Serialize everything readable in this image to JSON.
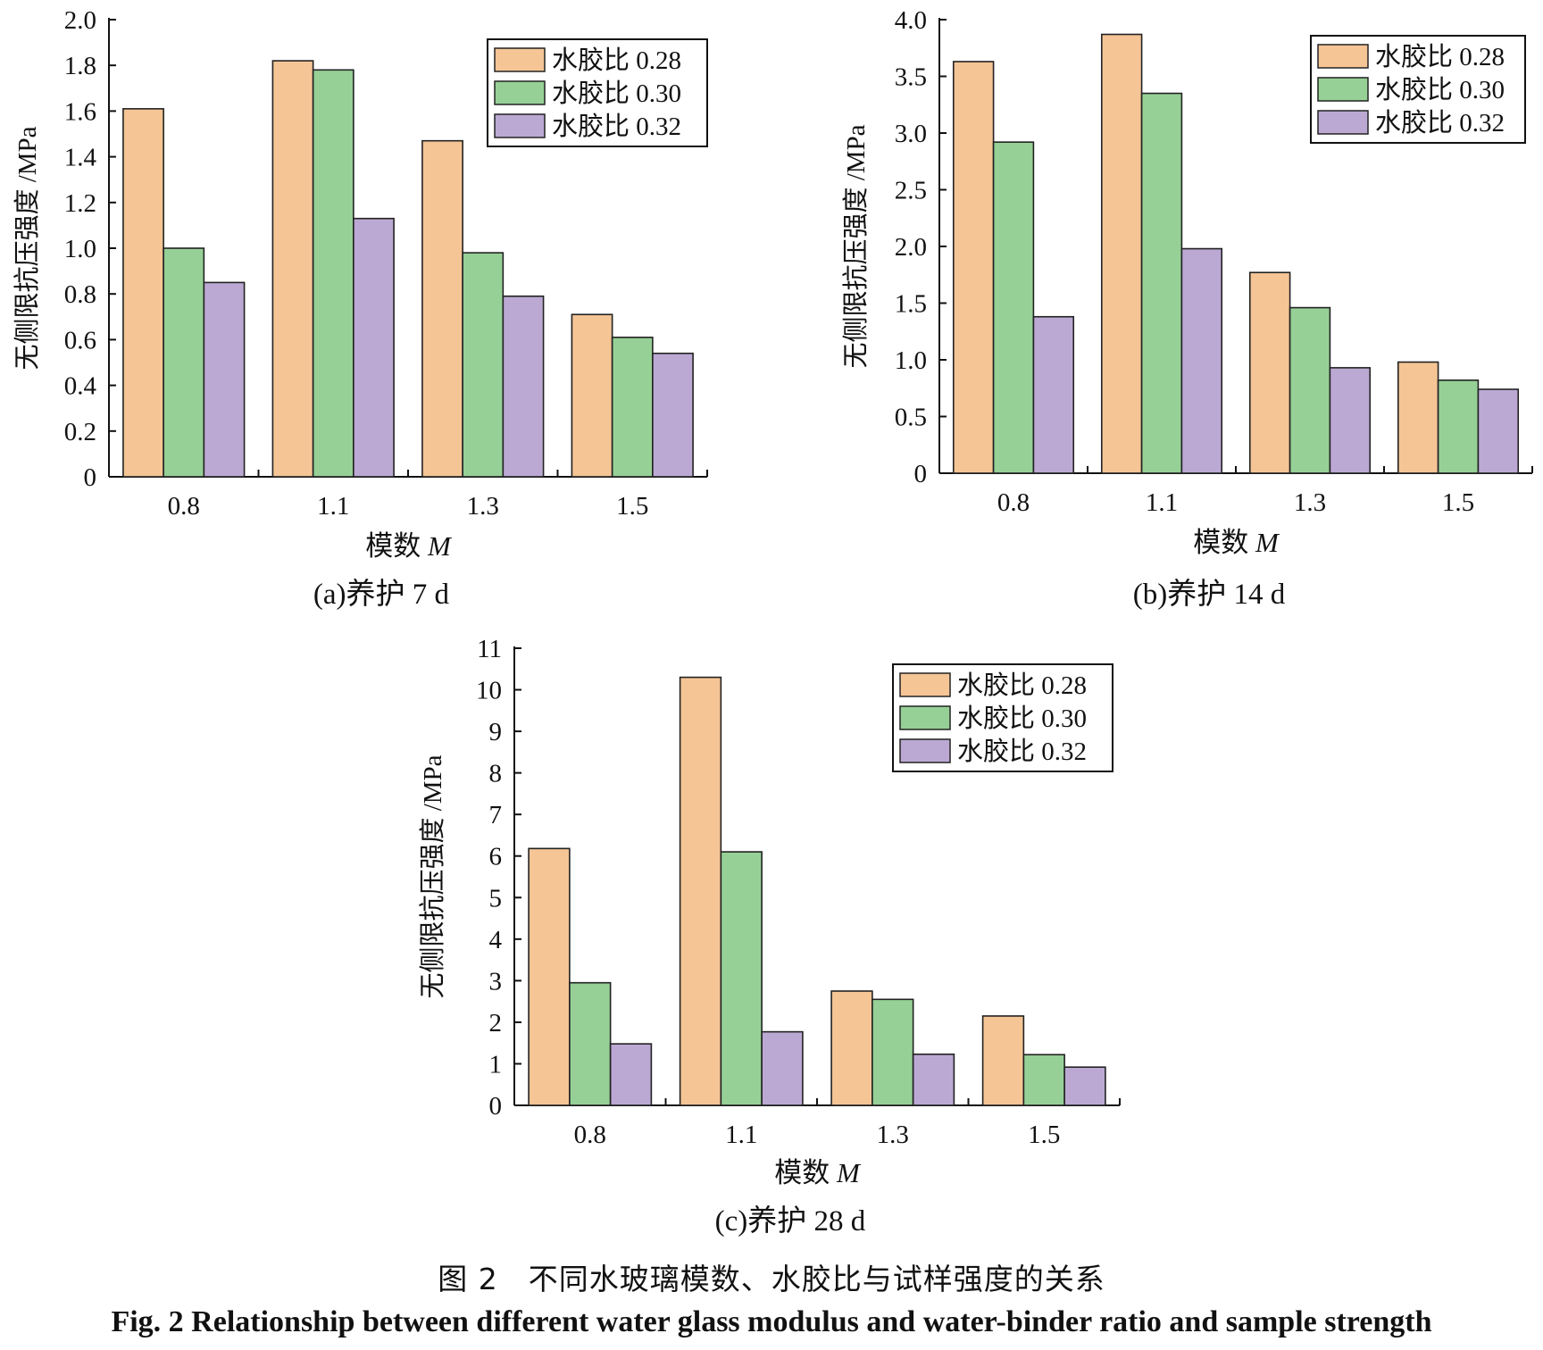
{
  "caption": {
    "cn": "图 2　不同水玻璃模数、水胶比与试样强度的关系",
    "en": "Fig. 2    Relationship between different water glass modulus and water-binder ratio and sample strength"
  },
  "colors": {
    "s028": "#F5C596",
    "s030": "#96D096",
    "s032": "#BBA9D3"
  },
  "chart_data": [
    {
      "type": "bar",
      "subtitle": "(a)养护 7 d",
      "xlabel": "模数 M",
      "ylabel": "无侧限抗压强度 /MPa",
      "categories": [
        "0.8",
        "1.1",
        "1.3",
        "1.5"
      ],
      "ylim": [
        0,
        2.0
      ],
      "yticks": [
        "0",
        "0.2",
        "0.4",
        "0.6",
        "0.8",
        "1.0",
        "1.2",
        "1.4",
        "1.6",
        "1.8",
        "2.0"
      ],
      "legend_position": "top-right",
      "series": [
        {
          "name": "水胶比 0.28",
          "values": [
            1.61,
            1.82,
            1.47,
            0.71
          ]
        },
        {
          "name": "水胶比 0.30",
          "values": [
            1.0,
            1.78,
            0.98,
            0.61
          ]
        },
        {
          "name": "水胶比 0.32",
          "values": [
            0.85,
            1.13,
            0.79,
            0.54
          ]
        }
      ]
    },
    {
      "type": "bar",
      "subtitle": "(b)养护 14 d",
      "xlabel": "模数 M",
      "ylabel": "无侧限抗压强度 /MPa",
      "categories": [
        "0.8",
        "1.1",
        "1.3",
        "1.5"
      ],
      "ylim": [
        0,
        4.0
      ],
      "yticks": [
        "0",
        "0.5",
        "1.0",
        "1.5",
        "2.0",
        "2.5",
        "3.0",
        "3.5",
        "4.0"
      ],
      "legend_position": "top-right",
      "series": [
        {
          "name": "水胶比 0.28",
          "values": [
            3.63,
            3.87,
            1.77,
            0.98
          ]
        },
        {
          "name": "水胶比 0.30",
          "values": [
            2.92,
            3.35,
            1.46,
            0.82
          ]
        },
        {
          "name": "水胶比 0.32",
          "values": [
            1.38,
            1.98,
            0.93,
            0.74
          ]
        }
      ]
    },
    {
      "type": "bar",
      "subtitle": "(c)养护 28 d",
      "xlabel": "模数 M",
      "ylabel": "无侧限抗压强度 /MPa",
      "categories": [
        "0.8",
        "1.1",
        "1.3",
        "1.5"
      ],
      "ylim": [
        0,
        11
      ],
      "yticks": [
        "0",
        "1",
        "2",
        "3",
        "4",
        "5",
        "6",
        "7",
        "8",
        "9",
        "10",
        "11"
      ],
      "legend_position": "top-right",
      "series": [
        {
          "name": "水胶比 0.28",
          "values": [
            6.18,
            10.3,
            2.75,
            2.15
          ]
        },
        {
          "name": "水胶比 0.30",
          "values": [
            2.95,
            6.1,
            2.55,
            1.22
          ]
        },
        {
          "name": "水胶比 0.32",
          "values": [
            1.48,
            1.77,
            1.23,
            0.92
          ]
        }
      ]
    }
  ]
}
